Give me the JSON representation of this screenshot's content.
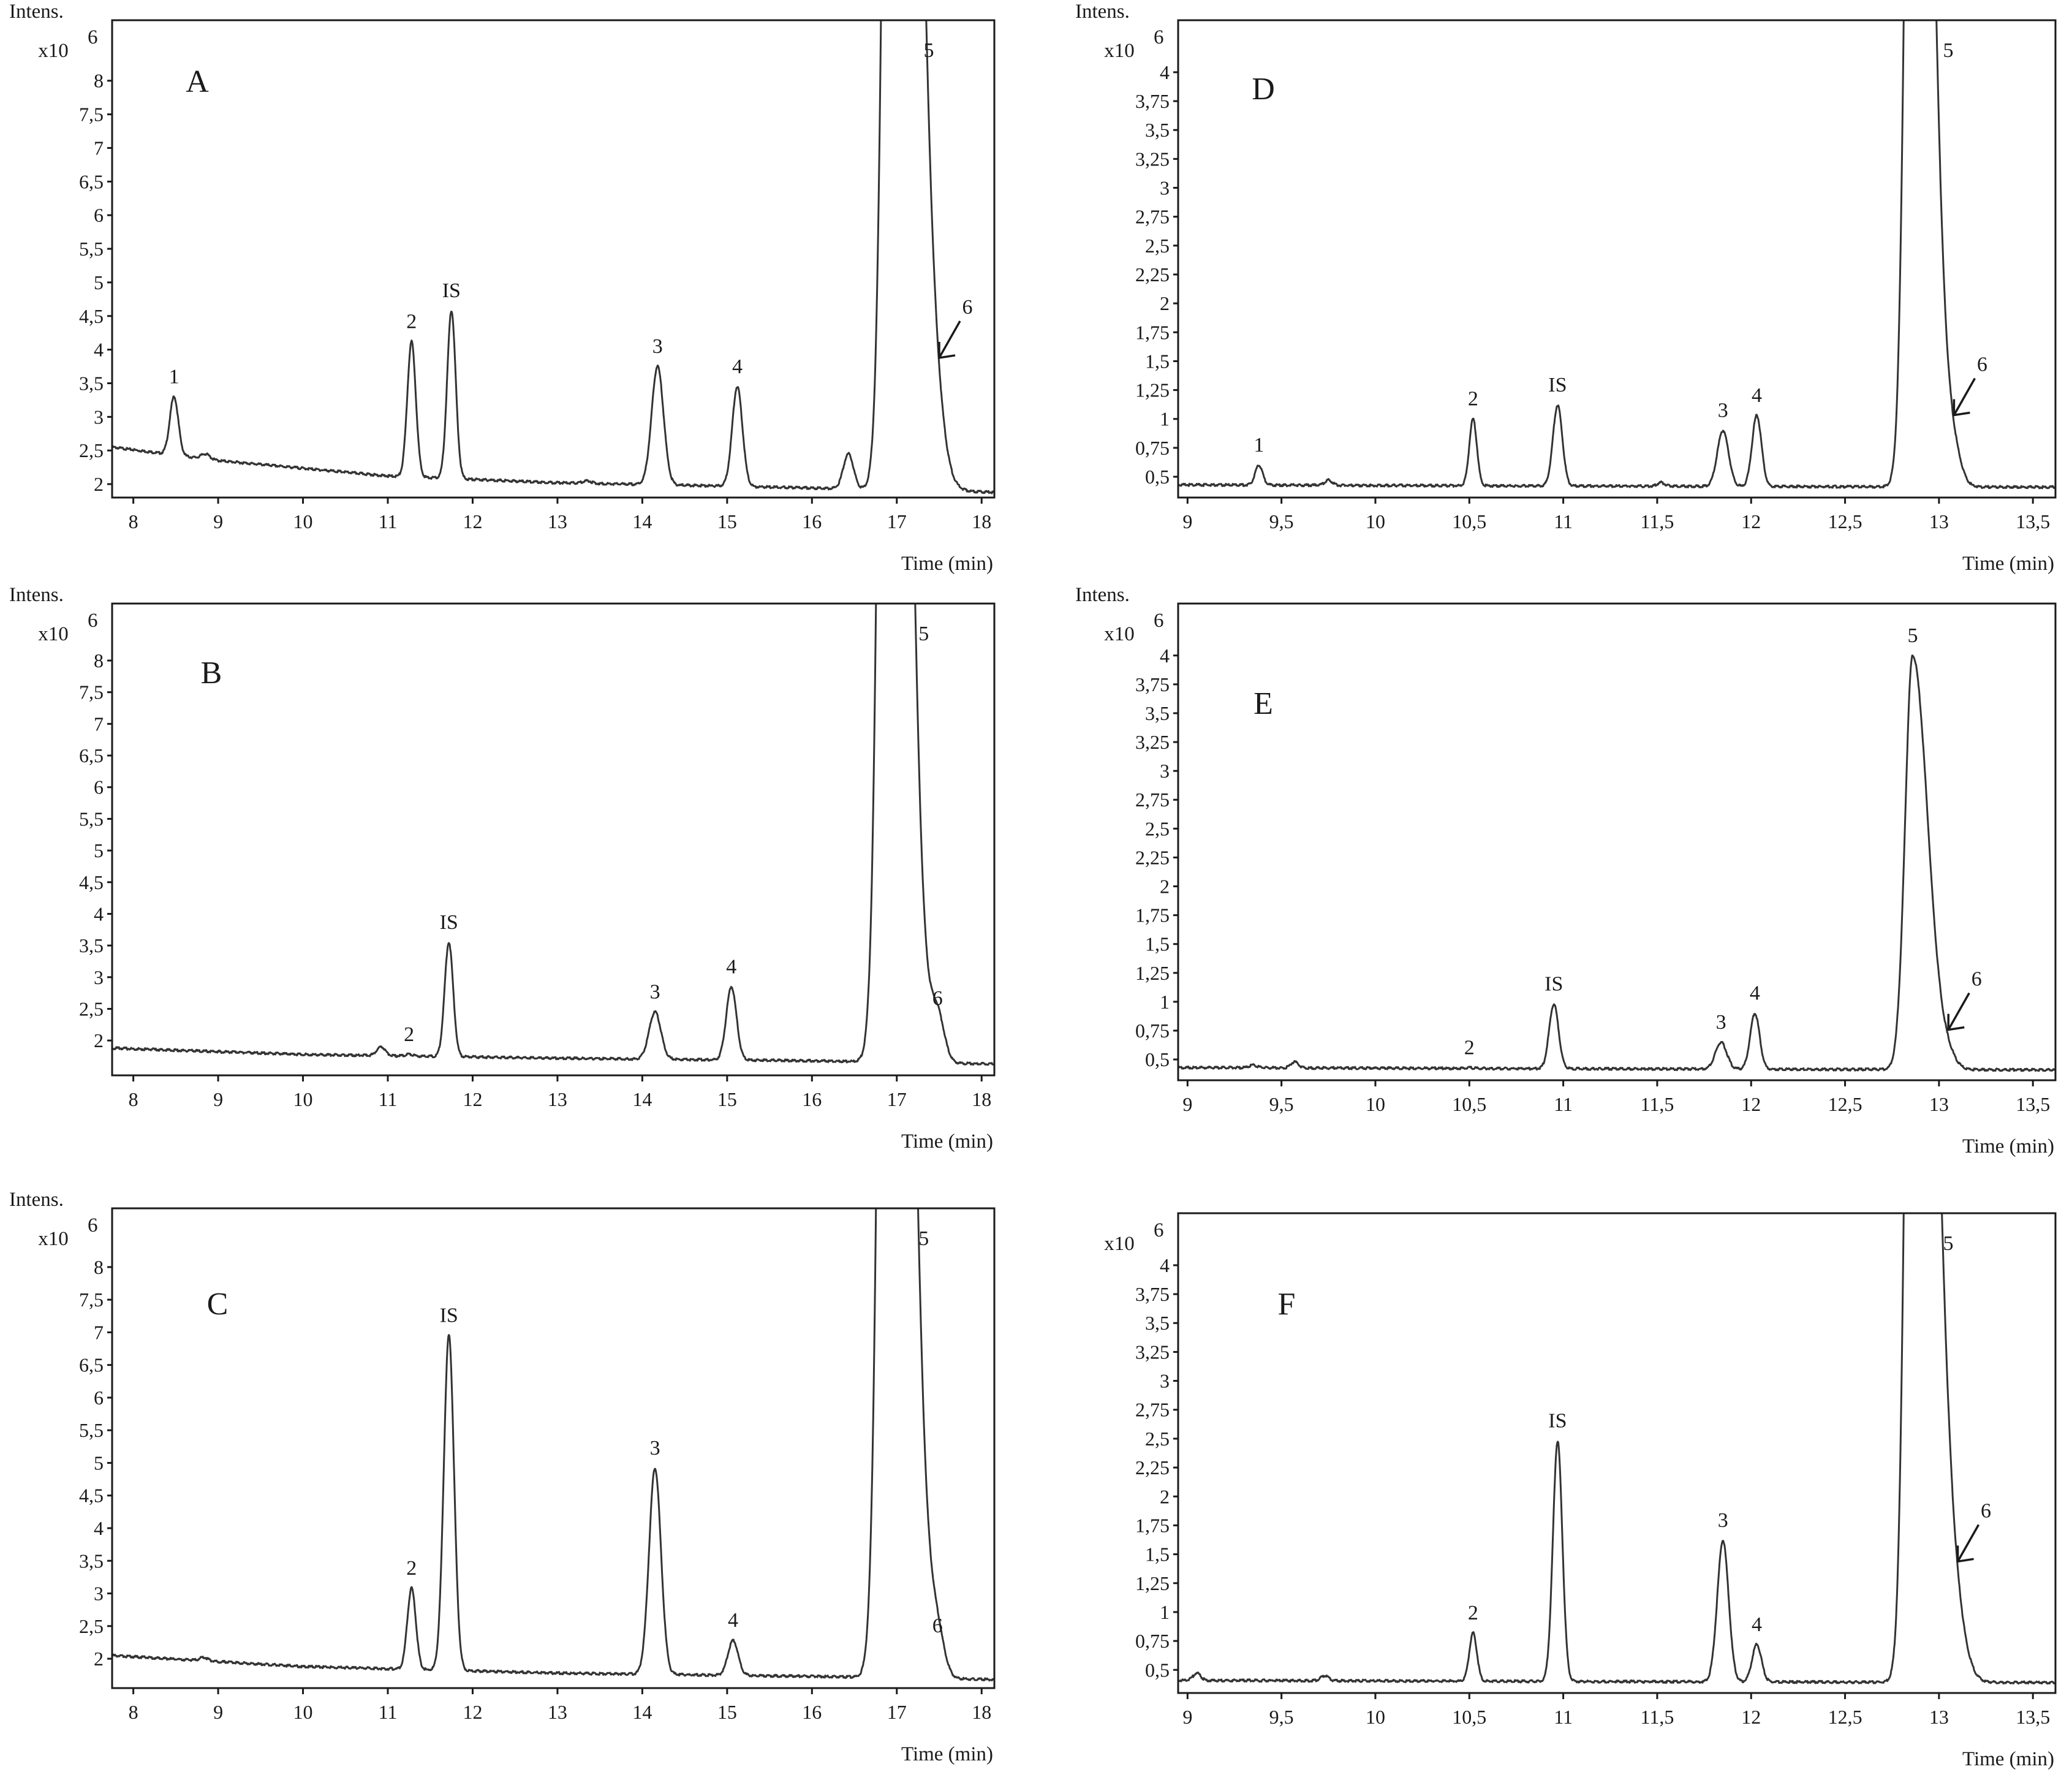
{
  "figure": {
    "y_label": "Intens.",
    "y_multiplier": "x10",
    "y_exponent": "6",
    "x_label": "Time (min)"
  },
  "chart_data": [
    {
      "type": "line",
      "panel": "A",
      "xlim": [
        7.75,
        18.15
      ],
      "ylim": [
        1.8,
        8.9
      ],
      "xticks": [
        8,
        9,
        10,
        11,
        12,
        13,
        14,
        15,
        16,
        17,
        18
      ],
      "xtick_labels": [
        "8",
        "9",
        "10",
        "11",
        "12",
        "13",
        "14",
        "15",
        "16",
        "17",
        "18"
      ],
      "yticks": [
        2,
        2.5,
        3,
        3.5,
        4,
        4.5,
        5,
        5.5,
        6,
        6.5,
        7,
        7.5,
        8
      ],
      "ytick_labels": [
        "2",
        "2,5",
        "3",
        "3,5",
        "4",
        "4,5",
        "5",
        "5,5",
        "6",
        "6,5",
        "7",
        "7,5",
        "8"
      ],
      "show_intens_label": true,
      "baseline": [
        [
          7.75,
          2.55
        ],
        [
          9,
          2.35
        ],
        [
          11,
          2.12
        ],
        [
          13,
          2.02
        ],
        [
          15,
          1.97
        ],
        [
          16.4,
          1.93
        ],
        [
          18.15,
          1.88
        ]
      ],
      "peaks": [
        {
          "label": "1",
          "x": 8.48,
          "y": 3.3,
          "width": 0.05
        },
        {
          "label": "",
          "x": 8.85,
          "y": 2.45,
          "width": 0.05
        },
        {
          "label": "2",
          "x": 11.28,
          "y": 4.12,
          "width": 0.05
        },
        {
          "label": "IS",
          "x": 11.75,
          "y": 4.58,
          "width": 0.05
        },
        {
          "label": "",
          "x": 13.35,
          "y": 2.05,
          "width": 0.05
        },
        {
          "label": "3",
          "x": 14.18,
          "y": 3.75,
          "width": 0.07
        },
        {
          "label": "4",
          "x": 15.12,
          "y": 3.45,
          "width": 0.06
        },
        {
          "label": "",
          "x": 16.43,
          "y": 2.45,
          "width": 0.06
        },
        {
          "label": "5",
          "x": 16.98,
          "y": 30,
          "width": 0.1,
          "tail": 0.22
        },
        {
          "label": "6",
          "x": 17.5,
          "y": 2.05,
          "width": 0.08,
          "arrow": true
        }
      ]
    },
    {
      "type": "line",
      "panel": "B",
      "xlim": [
        7.75,
        18.15
      ],
      "ylim": [
        1.45,
        8.9
      ],
      "xticks": [
        8,
        9,
        10,
        11,
        12,
        13,
        14,
        15,
        16,
        17,
        18
      ],
      "xtick_labels": [
        "8",
        "9",
        "10",
        "11",
        "12",
        "13",
        "14",
        "15",
        "16",
        "17",
        "18"
      ],
      "yticks": [
        2,
        2.5,
        3,
        3.5,
        4,
        4.5,
        5,
        5.5,
        6,
        6.5,
        7,
        7.5,
        8
      ],
      "ytick_labels": [
        "2",
        "2,5",
        "3",
        "3,5",
        "4",
        "4,5",
        "5",
        "5,5",
        "6",
        "6,5",
        "7",
        "7,5",
        "8"
      ],
      "show_intens_label": true,
      "baseline": [
        [
          7.75,
          1.88
        ],
        [
          10,
          1.78
        ],
        [
          13,
          1.72
        ],
        [
          16,
          1.68
        ],
        [
          18.15,
          1.63
        ]
      ],
      "peaks": [
        {
          "label": "",
          "x": 10.92,
          "y": 1.9,
          "width": 0.05
        },
        {
          "label": "2",
          "x": 11.25,
          "y": 1.78,
          "width": 0.05
        },
        {
          "label": "IS",
          "x": 11.72,
          "y": 3.55,
          "width": 0.05
        },
        {
          "label": "3",
          "x": 14.15,
          "y": 2.45,
          "width": 0.07
        },
        {
          "label": "4",
          "x": 15.05,
          "y": 2.85,
          "width": 0.06
        },
        {
          "label": "5",
          "x": 16.92,
          "y": 30,
          "width": 0.1,
          "tail": 0.18
        },
        {
          "label": "6",
          "x": 17.48,
          "y": 2.35,
          "width": 0.08
        }
      ]
    },
    {
      "type": "line",
      "panel": "C",
      "xlim": [
        7.75,
        18.15
      ],
      "ylim": [
        1.55,
        8.9
      ],
      "xticks": [
        8,
        9,
        10,
        11,
        12,
        13,
        14,
        15,
        16,
        17,
        18
      ],
      "xtick_labels": [
        "8",
        "9",
        "10",
        "11",
        "12",
        "13",
        "14",
        "15",
        "16",
        "17",
        "18"
      ],
      "yticks": [
        2,
        2.5,
        3,
        3.5,
        4,
        4.5,
        5,
        5.5,
        6,
        6.5,
        7,
        7.5,
        8
      ],
      "ytick_labels": [
        "2",
        "2,5",
        "3",
        "3,5",
        "4",
        "4,5",
        "5",
        "5,5",
        "6",
        "6,5",
        "7",
        "7,5",
        "8"
      ],
      "show_intens_label": true,
      "baseline": [
        [
          7.75,
          2.05
        ],
        [
          10,
          1.88
        ],
        [
          13,
          1.78
        ],
        [
          16,
          1.73
        ],
        [
          18.15,
          1.68
        ]
      ],
      "peaks": [
        {
          "label": "",
          "x": 8.83,
          "y": 2.02,
          "width": 0.05
        },
        {
          "label": "2",
          "x": 11.28,
          "y": 3.08,
          "width": 0.05
        },
        {
          "label": "IS",
          "x": 11.72,
          "y": 6.95,
          "width": 0.06
        },
        {
          "label": "3",
          "x": 14.15,
          "y": 4.92,
          "width": 0.07
        },
        {
          "label": "4",
          "x": 15.07,
          "y": 2.28,
          "width": 0.06
        },
        {
          "label": "5",
          "x": 16.92,
          "y": 30,
          "width": 0.1,
          "tail": 0.2
        },
        {
          "label": "6",
          "x": 17.48,
          "y": 2.2,
          "width": 0.08
        }
      ]
    },
    {
      "type": "line",
      "panel": "D",
      "xlim": [
        8.95,
        13.62
      ],
      "ylim": [
        0.32,
        4.45
      ],
      "xticks": [
        9,
        9.5,
        10,
        10.5,
        11,
        11.5,
        12,
        12.5,
        13,
        13.5
      ],
      "xtick_labels": [
        "9",
        "9,5",
        "10",
        "10,5",
        "11",
        "11,5",
        "12",
        "12,5",
        "13",
        "13,5"
      ],
      "yticks": [
        0.5,
        0.75,
        1,
        1.25,
        1.5,
        1.75,
        2,
        2.25,
        2.5,
        2.75,
        3,
        3.25,
        3.5,
        3.75,
        4
      ],
      "ytick_labels": [
        "0,5",
        "0,75",
        "1",
        "1,25",
        "1,5",
        "1,75",
        "2",
        "2,25",
        "2,5",
        "2,75",
        "3",
        "3,25",
        "3,5",
        "3,75",
        "4"
      ],
      "show_intens_label": true,
      "baseline": [
        [
          8.95,
          0.43
        ],
        [
          11,
          0.42
        ],
        [
          13.62,
          0.41
        ]
      ],
      "peaks": [
        {
          "label": "1",
          "x": 9.38,
          "y": 0.6,
          "width": 0.02
        },
        {
          "label": "",
          "x": 9.75,
          "y": 0.47,
          "width": 0.02
        },
        {
          "label": "2",
          "x": 10.52,
          "y": 1.0,
          "width": 0.02
        },
        {
          "label": "IS",
          "x": 10.97,
          "y": 1.12,
          "width": 0.025
        },
        {
          "label": "",
          "x": 11.52,
          "y": 0.45,
          "width": 0.02
        },
        {
          "label": "3",
          "x": 11.85,
          "y": 0.9,
          "width": 0.03
        },
        {
          "label": "4",
          "x": 12.03,
          "y": 1.03,
          "width": 0.025
        },
        {
          "label": "5",
          "x": 12.87,
          "y": 12,
          "width": 0.04,
          "tail": 0.08
        },
        {
          "label": "6",
          "x": 13.08,
          "y": 0.6,
          "width": 0.04,
          "arrow": true
        }
      ]
    },
    {
      "type": "line",
      "panel": "E",
      "xlim": [
        8.95,
        13.62
      ],
      "ylim": [
        0.32,
        4.45
      ],
      "xticks": [
        9,
        9.5,
        10,
        10.5,
        11,
        11.5,
        12,
        12.5,
        13,
        13.5
      ],
      "xtick_labels": [
        "9",
        "9,5",
        "10",
        "10,5",
        "11",
        "11,5",
        "12",
        "12,5",
        "13",
        "13,5"
      ],
      "yticks": [
        0.5,
        0.75,
        1,
        1.25,
        1.5,
        1.75,
        2,
        2.25,
        2.5,
        2.75,
        3,
        3.25,
        3.5,
        3.75,
        4
      ],
      "ytick_labels": [
        "0,5",
        "0,75",
        "1",
        "1,25",
        "1,5",
        "1,75",
        "2",
        "2,25",
        "2,5",
        "2,75",
        "3",
        "3,25",
        "3,5",
        "3,75",
        "4"
      ],
      "show_intens_label": true,
      "baseline": [
        [
          8.95,
          0.43
        ],
        [
          11,
          0.42
        ],
        [
          13.62,
          0.41
        ]
      ],
      "peaks": [
        {
          "label": "",
          "x": 9.35,
          "y": 0.45,
          "width": 0.02
        },
        {
          "label": "",
          "x": 9.57,
          "y": 0.48,
          "width": 0.02
        },
        {
          "label": "2",
          "x": 10.5,
          "y": 0.43,
          "width": 0.02
        },
        {
          "label": "IS",
          "x": 10.95,
          "y": 0.98,
          "width": 0.025
        },
        {
          "label": "3",
          "x": 11.84,
          "y": 0.65,
          "width": 0.03
        },
        {
          "label": "4",
          "x": 12.02,
          "y": 0.9,
          "width": 0.025
        },
        {
          "label": "5",
          "x": 12.86,
          "y": 4.0,
          "width": 0.04,
          "tail": 0.08
        },
        {
          "label": "6",
          "x": 13.05,
          "y": 0.48,
          "width": 0.04,
          "arrow": true
        }
      ]
    },
    {
      "type": "line",
      "panel": "F",
      "xlim": [
        8.95,
        13.62
      ],
      "ylim": [
        0.3,
        4.45
      ],
      "xticks": [
        9,
        9.5,
        10,
        10.5,
        11,
        11.5,
        12,
        12.5,
        13,
        13.5
      ],
      "xtick_labels": [
        "9",
        "9,5",
        "10",
        "10,5",
        "11",
        "11,5",
        "12",
        "12,5",
        "13",
        "13,5"
      ],
      "yticks": [
        0.5,
        0.75,
        1,
        1.25,
        1.5,
        1.75,
        2,
        2.25,
        2.5,
        2.75,
        3,
        3.25,
        3.5,
        3.75,
        4
      ],
      "ytick_labels": [
        "0,5",
        "0,75",
        "1",
        "1,25",
        "1,5",
        "1,75",
        "2",
        "2,25",
        "2,5",
        "2,75",
        "3",
        "3,25",
        "3,5",
        "3,75",
        "4"
      ],
      "show_intens_label": false,
      "baseline": [
        [
          8.95,
          0.41
        ],
        [
          11,
          0.4
        ],
        [
          13.62,
          0.39
        ]
      ],
      "peaks": [
        {
          "label": "",
          "x": 9.05,
          "y": 0.47,
          "width": 0.02
        },
        {
          "label": "",
          "x": 9.73,
          "y": 0.45,
          "width": 0.02
        },
        {
          "label": "2",
          "x": 10.52,
          "y": 0.82,
          "width": 0.02
        },
        {
          "label": "IS",
          "x": 10.97,
          "y": 2.48,
          "width": 0.025
        },
        {
          "label": "3",
          "x": 11.85,
          "y": 1.62,
          "width": 0.03
        },
        {
          "label": "4",
          "x": 12.03,
          "y": 0.72,
          "width": 0.025
        },
        {
          "label": "5",
          "x": 12.87,
          "y": 12,
          "width": 0.04,
          "tail": 0.1
        },
        {
          "label": "6",
          "x": 13.1,
          "y": 0.55,
          "width": 0.05,
          "arrow": true
        }
      ]
    }
  ]
}
